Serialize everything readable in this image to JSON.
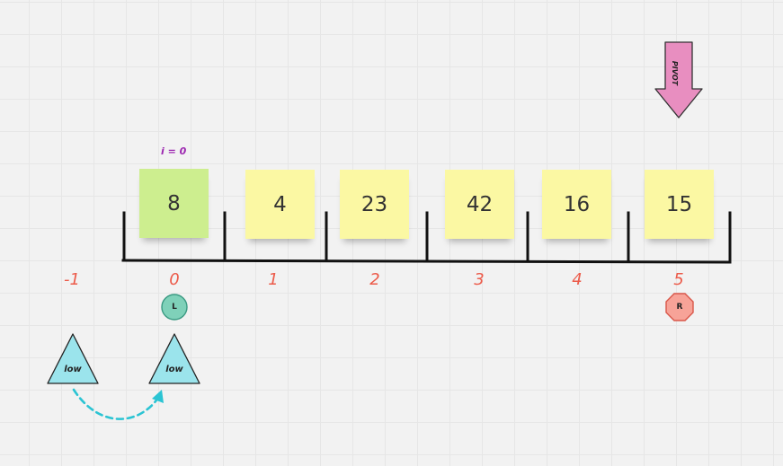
{
  "iteration": {
    "label": "i = 0"
  },
  "array": {
    "values": [
      "8",
      "4",
      "23",
      "42",
      "16",
      "15"
    ],
    "indices": [
      "-1",
      "0",
      "1",
      "2",
      "3",
      "4",
      "5"
    ]
  },
  "pivot": {
    "label": "PIVOT"
  },
  "pointers": {
    "left": "L",
    "right": "R"
  },
  "low_markers": {
    "previous": "low",
    "current": "low"
  },
  "colors": {
    "note": "#fbf8a3",
    "active_note": "#cdee8f",
    "index_text": "#ec5b4a",
    "pivot_arrow": "#e88ec0",
    "left_marker": "#7fd1b9",
    "right_marker": "#f7a398",
    "low_triangle": "#9be4ec",
    "move_arrow": "#2bc4d3",
    "iteration_text": "#9c27b0"
  }
}
